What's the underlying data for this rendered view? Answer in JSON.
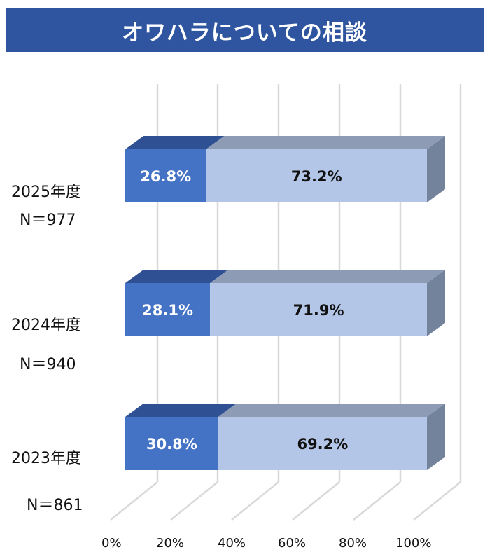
{
  "title": "オワハラについての相談",
  "colors": {
    "title_bg": "#2f55a0",
    "series_1_front": "#4472c4",
    "series_1_top": "#2f5193",
    "series_2_front": "#b4c6e7",
    "series_2_top": "#8e9bb4",
    "side": "#73839c",
    "grid": "#d9d9d9"
  },
  "chart_data": {
    "type": "bar",
    "orientation": "horizontal",
    "stacked": "percent",
    "style": "3d",
    "title": "オワハラについての相談",
    "categories": [
      {
        "year": "2025年度",
        "n": "N＝977"
      },
      {
        "year": "2024年度",
        "n": "N＝940"
      },
      {
        "year": "2023年度",
        "n": "N＝861"
      }
    ],
    "series": [
      {
        "values": [
          26.8,
          28.1,
          30.8
        ],
        "labels": [
          "26.8%",
          "28.1%",
          "30.8%"
        ]
      },
      {
        "values": [
          73.2,
          71.9,
          69.2
        ],
        "labels": [
          "73.2%",
          "71.9%",
          "69.2%"
        ]
      }
    ],
    "xlim": [
      0,
      100
    ],
    "x_ticks": [
      "0%",
      "20%",
      "40%",
      "60%",
      "80%",
      "100%"
    ],
    "grid": true,
    "legend": "none"
  }
}
